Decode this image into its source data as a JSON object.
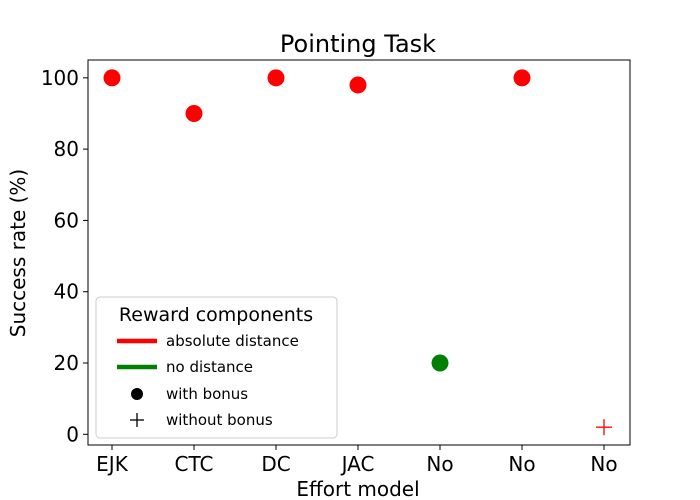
{
  "chart_data": {
    "type": "scatter",
    "title": "Pointing Task",
    "xlabel": "Effort model",
    "ylabel": "Success rate (%)",
    "categories": [
      "EJK",
      "CTC",
      "DC",
      "JAC",
      "No",
      "No",
      "No"
    ],
    "yticks": [
      0,
      20,
      40,
      60,
      80,
      100
    ],
    "ylim": [
      -3,
      105
    ],
    "grid": false,
    "points": [
      {
        "category_index": 0,
        "value": 100,
        "distance": "absolute distance",
        "bonus": "with bonus",
        "color": "#ff0000",
        "marker": "circle"
      },
      {
        "category_index": 1,
        "value": 90,
        "distance": "absolute distance",
        "bonus": "with bonus",
        "color": "#ff0000",
        "marker": "circle"
      },
      {
        "category_index": 2,
        "value": 100,
        "distance": "absolute distance",
        "bonus": "with bonus",
        "color": "#ff0000",
        "marker": "circle"
      },
      {
        "category_index": 3,
        "value": 98,
        "distance": "absolute distance",
        "bonus": "with bonus",
        "color": "#ff0000",
        "marker": "circle"
      },
      {
        "category_index": 4,
        "value": 20,
        "distance": "no distance",
        "bonus": "with bonus",
        "color": "#008000",
        "marker": "circle"
      },
      {
        "category_index": 5,
        "value": 100,
        "distance": "absolute distance",
        "bonus": "with bonus",
        "color": "#ff0000",
        "marker": "circle"
      },
      {
        "category_index": 6,
        "value": 2,
        "distance": "absolute distance",
        "bonus": "without bonus",
        "color": "#ff0000",
        "marker": "plus"
      }
    ],
    "legend": {
      "title": "Reward components",
      "placement": "lower-left",
      "entries": [
        {
          "label": "absolute distance",
          "kind": "line",
          "color": "#ff0000"
        },
        {
          "label": "no distance",
          "kind": "line",
          "color": "#008000"
        },
        {
          "label": "with bonus",
          "kind": "circle",
          "color": "#000000"
        },
        {
          "label": "without bonus",
          "kind": "plus",
          "color": "#000000"
        }
      ]
    }
  }
}
